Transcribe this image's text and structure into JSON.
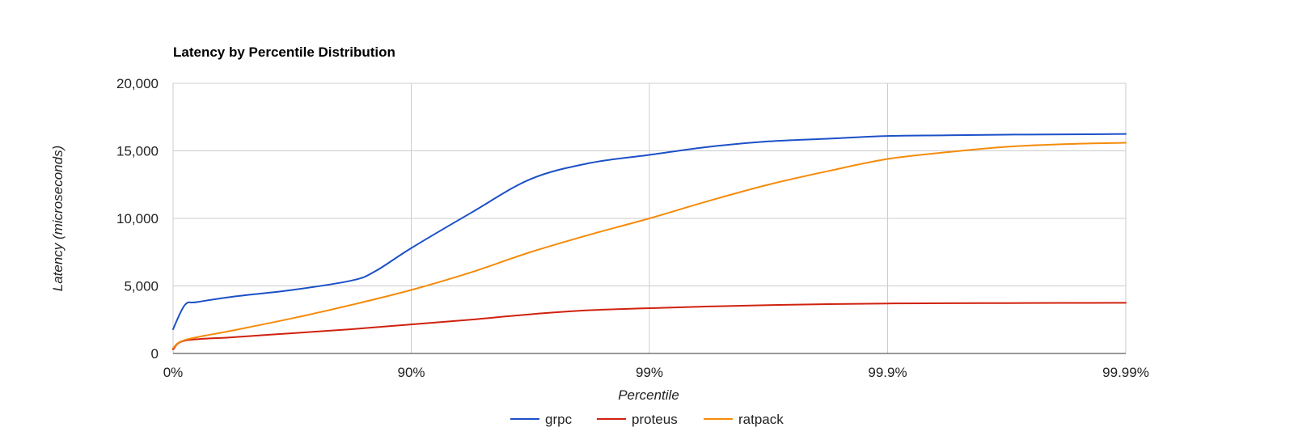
{
  "chart_data": {
    "type": "line",
    "title": "Latency by Percentile Distribution",
    "xlabel": "Percentile",
    "ylabel": "Latency (microseconds)",
    "x_scale": "percentile-log",
    "x_ticks": [
      {
        "value": 0,
        "label": "0%"
      },
      {
        "value": 1,
        "label": "90%"
      },
      {
        "value": 2,
        "label": "99%"
      },
      {
        "value": 3,
        "label": "99.9%"
      },
      {
        "value": 4,
        "label": "99.99%"
      }
    ],
    "y_ticks": [
      {
        "value": 0,
        "label": "0"
      },
      {
        "value": 5000,
        "label": "5,000"
      },
      {
        "value": 10000,
        "label": "10,000"
      },
      {
        "value": 15000,
        "label": "15,000"
      },
      {
        "value": 20000,
        "label": "20,000"
      }
    ],
    "ylim": [
      0,
      20000
    ],
    "xlim": [
      0,
      4
    ],
    "grid": true,
    "legend_position": "bottom",
    "series": [
      {
        "name": "grpc",
        "color": "#1c50c8",
        "points": [
          [
            0,
            1800
          ],
          [
            0.05,
            3600
          ],
          [
            0.1,
            3800
          ],
          [
            0.25,
            4200
          ],
          [
            0.5,
            4700
          ],
          [
            0.75,
            5400
          ],
          [
            0.85,
            6100
          ],
          [
            1.0,
            7800
          ],
          [
            1.25,
            10400
          ],
          [
            1.5,
            12900
          ],
          [
            1.75,
            14100
          ],
          [
            2.0,
            14700
          ],
          [
            2.25,
            15300
          ],
          [
            2.5,
            15700
          ],
          [
            2.75,
            15900
          ],
          [
            3.0,
            16100
          ],
          [
            3.25,
            16150
          ],
          [
            3.5,
            16200
          ],
          [
            3.75,
            16220
          ],
          [
            4.0,
            16250
          ]
        ]
      },
      {
        "name": "proteus",
        "color": "#d0210e",
        "points": [
          [
            0,
            300
          ],
          [
            0.05,
            950
          ],
          [
            0.25,
            1200
          ],
          [
            0.5,
            1500
          ],
          [
            0.75,
            1800
          ],
          [
            1.0,
            2150
          ],
          [
            1.25,
            2500
          ],
          [
            1.5,
            2900
          ],
          [
            1.75,
            3200
          ],
          [
            2.0,
            3350
          ],
          [
            2.25,
            3480
          ],
          [
            2.5,
            3580
          ],
          [
            2.75,
            3650
          ],
          [
            3.0,
            3700
          ],
          [
            3.25,
            3720
          ],
          [
            3.5,
            3730
          ],
          [
            3.75,
            3740
          ],
          [
            4.0,
            3750
          ]
        ]
      },
      {
        "name": "ratpack",
        "color": "#f58b0a",
        "points": [
          [
            0,
            400
          ],
          [
            0.05,
            1000
          ],
          [
            0.25,
            1700
          ],
          [
            0.5,
            2600
          ],
          [
            0.75,
            3600
          ],
          [
            1.0,
            4700
          ],
          [
            1.25,
            6000
          ],
          [
            1.5,
            7500
          ],
          [
            1.75,
            8800
          ],
          [
            2.0,
            10000
          ],
          [
            2.25,
            11300
          ],
          [
            2.5,
            12500
          ],
          [
            2.75,
            13500
          ],
          [
            3.0,
            14400
          ],
          [
            3.25,
            14900
          ],
          [
            3.5,
            15300
          ],
          [
            3.75,
            15500
          ],
          [
            4.0,
            15600
          ]
        ]
      }
    ]
  }
}
